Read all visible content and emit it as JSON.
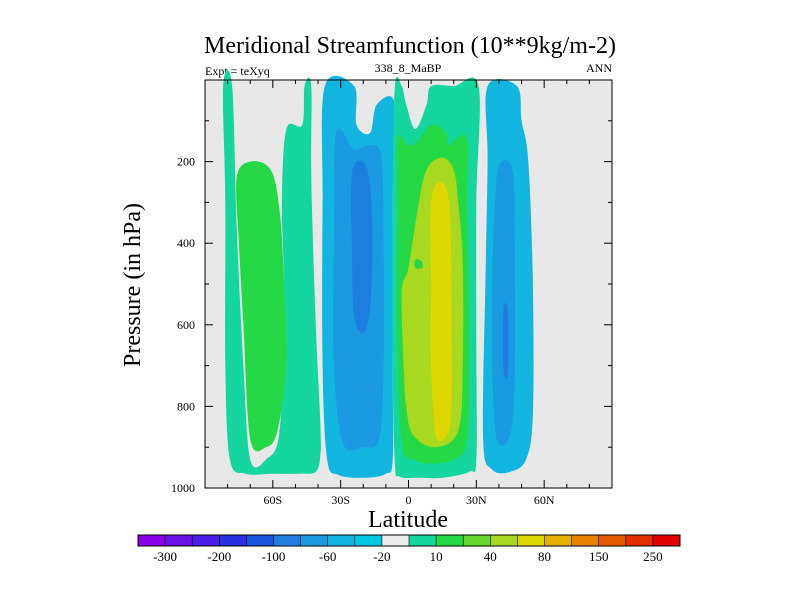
{
  "chart_data": {
    "type": "contour",
    "title": "Meridional Streamfunction (10**9kg/m-2)",
    "subtitle_left": "Expt = teXyq",
    "subtitle_center": "338_8_MaBP",
    "subtitle_right": "ANN",
    "xlabel": "Latitude",
    "ylabel": "Pressure (in hPa)",
    "xlim": [
      -90,
      90
    ],
    "ylim": [
      1000,
      0
    ],
    "background_color": "#e8e8e8",
    "x_ticks": [
      {
        "value": -60,
        "label": "60S"
      },
      {
        "value": -30,
        "label": "30S"
      },
      {
        "value": 0,
        "label": "0"
      },
      {
        "value": 30,
        "label": "30N"
      },
      {
        "value": 60,
        "label": "60N"
      }
    ],
    "y_ticks": [
      {
        "value": 200,
        "label": "200"
      },
      {
        "value": 400,
        "label": "400"
      },
      {
        "value": 600,
        "label": "600"
      },
      {
        "value": 800,
        "label": "800"
      },
      {
        "value": 1000,
        "label": "1000"
      }
    ],
    "colorbar": {
      "colors": [
        "#8a00e6",
        "#6d12e6",
        "#4a20e6",
        "#2a30e0",
        "#1a55e0",
        "#1f7fe0",
        "#1a9ae0",
        "#12b5e0",
        "#00c8e0",
        "#ededed",
        "#16d6a0",
        "#25d845",
        "#66d830",
        "#a8d820",
        "#ddd600",
        "#e6b000",
        "#e68400",
        "#e65a00",
        "#e03000",
        "#e00000"
      ],
      "labels": [
        "-300",
        "-200",
        "-100",
        "-60",
        "-20",
        "10",
        "40",
        "80",
        "150",
        "250"
      ]
    },
    "contour_regions": [
      {
        "name": "sh-polar-cell-outer",
        "level": 10,
        "color": "#16d6a0",
        "points": [
          [
            -82,
            15
          ],
          [
            -78,
            15
          ],
          [
            -76,
            360
          ],
          [
            -73,
            700
          ],
          [
            -70,
            930
          ],
          [
            -63,
            930
          ],
          [
            -57,
            860
          ],
          [
            -55,
            550
          ],
          [
            -56,
            300
          ],
          [
            -54,
            120
          ],
          [
            -47,
            110
          ],
          [
            -46,
            15
          ],
          [
            -43,
            15
          ],
          [
            -43,
            240
          ],
          [
            -41,
            600
          ],
          [
            -39,
            840
          ],
          [
            -39,
            920
          ],
          [
            -41,
            960
          ],
          [
            -48,
            965
          ],
          [
            -60,
            965
          ],
          [
            -72,
            965
          ],
          [
            -79,
            930
          ],
          [
            -81,
            700
          ],
          [
            -81,
            300
          ]
        ]
      },
      {
        "name": "sh-polar-cell-core",
        "level": 40,
        "color": "#25d845",
        "points": [
          [
            -76,
            240
          ],
          [
            -70,
            200
          ],
          [
            -61,
            220
          ],
          [
            -57,
            320
          ],
          [
            -55,
            500
          ],
          [
            -54,
            700
          ],
          [
            -58,
            860
          ],
          [
            -63,
            900
          ],
          [
            -70,
            880
          ],
          [
            -73,
            600
          ],
          [
            -75,
            400
          ]
        ]
      },
      {
        "name": "sh-ferrel-outer",
        "level": -20,
        "color": "#12b5e0",
        "points": [
          [
            -37,
            15
          ],
          [
            -24,
            15
          ],
          [
            -23,
            110
          ],
          [
            -17,
            130
          ],
          [
            -14,
            60
          ],
          [
            -6,
            60
          ],
          [
            -7,
            300
          ],
          [
            -7,
            700
          ],
          [
            -7,
            930
          ],
          [
            -10,
            965
          ],
          [
            -20,
            975
          ],
          [
            -31,
            968
          ],
          [
            -36,
            930
          ],
          [
            -38,
            700
          ],
          [
            -38,
            300
          ]
        ]
      },
      {
        "name": "sh-ferrel-mid",
        "level": -60,
        "color": "#1a9ae0",
        "points": [
          [
            -32,
            130
          ],
          [
            -24,
            170
          ],
          [
            -17,
            160
          ],
          [
            -12,
            190
          ],
          [
            -11,
            400
          ],
          [
            -11,
            700
          ],
          [
            -13,
            880
          ],
          [
            -20,
            900
          ],
          [
            -29,
            890
          ],
          [
            -33,
            700
          ],
          [
            -33,
            400
          ]
        ]
      },
      {
        "name": "sh-ferrel-core",
        "level": -100,
        "color": "#1f7fe0",
        "points": [
          [
            -25,
            230
          ],
          [
            -20,
            200
          ],
          [
            -17,
            260
          ],
          [
            -16,
            400
          ],
          [
            -17,
            560
          ],
          [
            -20,
            620
          ],
          [
            -24,
            580
          ],
          [
            -25,
            420
          ]
        ]
      },
      {
        "name": "hadley-outer",
        "level": 10,
        "color": "#16d6a0",
        "points": [
          [
            -6,
            15
          ],
          [
            -3,
            15
          ],
          [
            -1,
            60
          ],
          [
            3,
            120
          ],
          [
            8,
            60
          ],
          [
            10,
            15
          ],
          [
            20,
            15
          ],
          [
            31,
            15
          ],
          [
            30,
            300
          ],
          [
            30,
            650
          ],
          [
            30,
            930
          ],
          [
            27,
            960
          ],
          [
            15,
            975
          ],
          [
            5,
            975
          ],
          [
            -4,
            972
          ],
          [
            -6,
            940
          ],
          [
            -7,
            700
          ],
          [
            -7,
            300
          ]
        ]
      },
      {
        "name": "hadley-40",
        "level": 40,
        "color": "#25d845",
        "points": [
          [
            -5,
            280
          ],
          [
            -5,
            140
          ],
          [
            0,
            160
          ],
          [
            4,
            150
          ],
          [
            10,
            110
          ],
          [
            16,
            125
          ],
          [
            18,
            160
          ],
          [
            22,
            140
          ],
          [
            26,
            150
          ],
          [
            26,
            320
          ],
          [
            27,
            650
          ],
          [
            26,
            880
          ],
          [
            20,
            930
          ],
          [
            10,
            940
          ],
          [
            2,
            930
          ],
          [
            -3,
            890
          ],
          [
            -5,
            620
          ]
        ]
      },
      {
        "name": "hadley-80",
        "level": 80,
        "color": "#a8d820",
        "points": [
          [
            -2,
            720
          ],
          [
            -3,
            520
          ],
          [
            0,
            460
          ],
          [
            4,
            320
          ],
          [
            8,
            220
          ],
          [
            15,
            190
          ],
          [
            20,
            220
          ],
          [
            22,
            300
          ],
          [
            24,
            450
          ],
          [
            24,
            700
          ],
          [
            22,
            860
          ],
          [
            12,
            900
          ],
          [
            2,
            870
          ],
          [
            -1,
            800
          ]
        ]
      },
      {
        "name": "hadley-core",
        "level": 150,
        "color": "#ddd600",
        "points": [
          [
            10,
            300
          ],
          [
            14,
            250
          ],
          [
            18,
            300
          ],
          [
            19,
            500
          ],
          [
            19,
            800
          ],
          [
            17,
            870
          ],
          [
            12,
            870
          ],
          [
            10,
            700
          ],
          [
            10,
            500
          ]
        ]
      },
      {
        "name": "hadley-eye",
        "level": 40,
        "color": "#25d845",
        "points": [
          [
            3,
            440
          ],
          [
            6,
            445
          ],
          [
            6,
            460
          ],
          [
            3,
            460
          ]
        ]
      },
      {
        "name": "nh-ferrel-outer",
        "level": -20,
        "color": "#12b5e0",
        "points": [
          [
            35,
            15
          ],
          [
            48,
            15
          ],
          [
            50,
            100
          ],
          [
            53,
            200
          ],
          [
            55,
            500
          ],
          [
            55,
            820
          ],
          [
            52,
            930
          ],
          [
            45,
            960
          ],
          [
            37,
            955
          ],
          [
            33,
            880
          ],
          [
            34,
            500
          ],
          [
            35,
            200
          ]
        ]
      },
      {
        "name": "nh-ferrel-core",
        "level": -60,
        "color": "#1a9ae0",
        "points": [
          [
            38,
            330
          ],
          [
            40,
            210
          ],
          [
            46,
            220
          ],
          [
            47,
            400
          ],
          [
            47,
            720
          ],
          [
            45,
            870
          ],
          [
            39,
            880
          ],
          [
            37,
            700
          ],
          [
            37,
            500
          ]
        ]
      },
      {
        "name": "nh-ferrel-eye",
        "level": -100,
        "color": "#1f7fe0",
        "points": [
          [
            42,
            560
          ],
          [
            44,
            570
          ],
          [
            44,
            720
          ],
          [
            42,
            710
          ]
        ]
      }
    ]
  }
}
